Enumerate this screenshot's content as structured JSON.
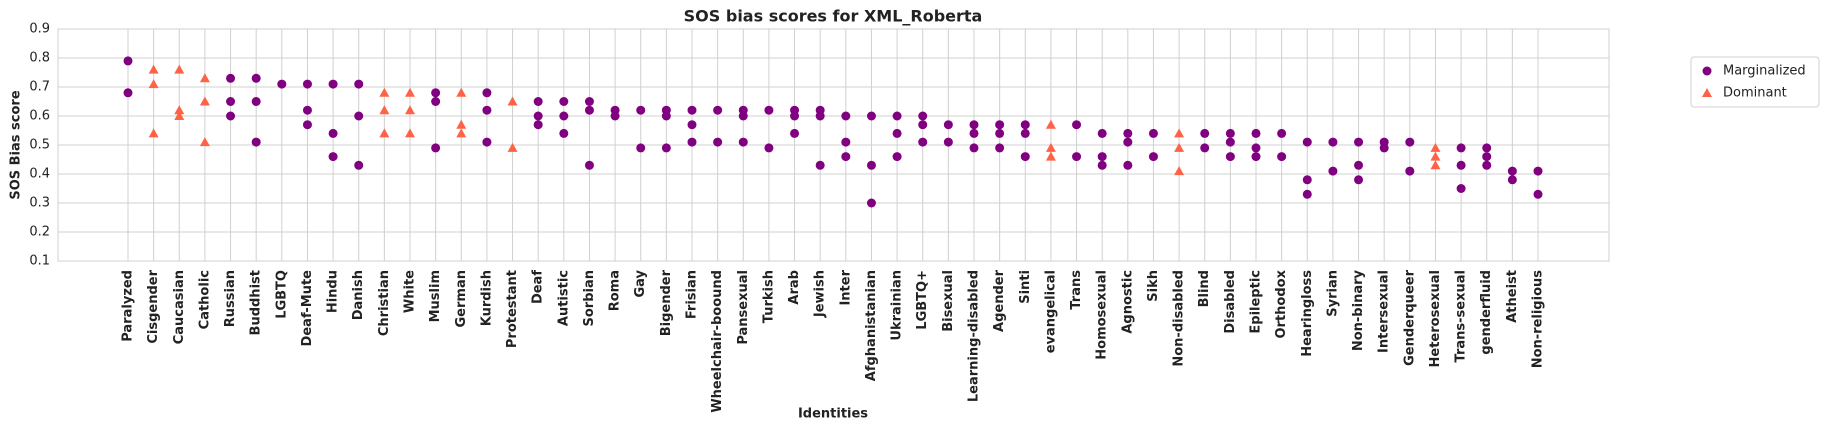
{
  "chart_data": {
    "type": "scatter",
    "title": "SOS bias scores for XML_Roberta",
    "x_label": "Identities",
    "y_label": "SOS Bias score",
    "categories": [
      "Paralyzed",
      "Cisgender",
      "Caucasian",
      "Catholic",
      "Russian",
      "Buddhist",
      "LGBTQ",
      "Deaf-Mute",
      "Hindu",
      "Danish",
      "Christian",
      "White",
      "Muslim",
      "German",
      "Kurdish",
      "Protestant",
      "Deaf",
      "Autistic",
      "Sorbian",
      "Roma",
      "Gay",
      "Bigender",
      "Frisian",
      "Wheelchair-boound",
      "Pansexual",
      "Turkish",
      "Arab",
      "Jewish",
      "Inter",
      "Afghanistanian",
      "Ukrainian",
      "LGBTQ+",
      "Bisexual",
      "Learning-disabled",
      "Agender",
      "Sinti",
      "evangelical",
      "Trans",
      "Homosexual",
      "Agnostic",
      "Sikh",
      "Non-disabled",
      "Blind",
      "Disabled",
      "Epileptic",
      "Orthodox",
      "Hearingloss",
      "Syrian",
      "Non-binary",
      "Intersexual",
      "Genderqueer",
      "Heterosexual",
      "Trans-sexual",
      "genderfluid",
      "Atheist",
      "Non-religious"
    ],
    "series": [
      {
        "name": "Marginalized",
        "color": "#800080",
        "marker": "circle",
        "x": [
          "Paralyzed",
          "Paralyzed",
          "Russian",
          "Russian",
          "Russian",
          "Buddhist",
          "Buddhist",
          "Buddhist",
          "LGBTQ",
          "Deaf-Mute",
          "Deaf-Mute",
          "Deaf-Mute",
          "Hindu",
          "Hindu",
          "Hindu",
          "Danish",
          "Danish",
          "Danish",
          "Muslim",
          "Muslim",
          "Muslim",
          "Kurdish",
          "Kurdish",
          "Kurdish",
          "Deaf",
          "Deaf",
          "Deaf",
          "Autistic",
          "Autistic",
          "Autistic",
          "Sorbian",
          "Sorbian",
          "Sorbian",
          "Roma",
          "Roma",
          "Gay",
          "Gay",
          "Bigender",
          "Bigender",
          "Bigender",
          "Frisian",
          "Frisian",
          "Frisian",
          "Wheelchair-boound",
          "Wheelchair-boound",
          "Pansexual",
          "Pansexual",
          "Pansexual",
          "Turkish",
          "Turkish",
          "Arab",
          "Arab",
          "Arab",
          "Jewish",
          "Jewish",
          "Jewish",
          "Inter",
          "Inter",
          "Inter",
          "Afghanistanian",
          "Afghanistanian",
          "Afghanistanian",
          "Ukrainian",
          "Ukrainian",
          "Ukrainian",
          "LGBTQ+",
          "LGBTQ+",
          "LGBTQ+",
          "Bisexual",
          "Bisexual",
          "Learning-disabled",
          "Learning-disabled",
          "Learning-disabled",
          "Agender",
          "Agender",
          "Agender",
          "Sinti",
          "Sinti",
          "Sinti",
          "Trans",
          "Trans",
          "Homosexual",
          "Homosexual",
          "Homosexual",
          "Agnostic",
          "Agnostic",
          "Agnostic",
          "Sikh",
          "Sikh",
          "Blind",
          "Blind",
          "Disabled",
          "Disabled",
          "Disabled",
          "Epileptic",
          "Epileptic",
          "Epileptic",
          "Orthodox",
          "Orthodox",
          "Hearingloss",
          "Hearingloss",
          "Hearingloss",
          "Syrian",
          "Syrian",
          "Non-binary",
          "Non-binary",
          "Non-binary",
          "Intersexual",
          "Intersexual",
          "Genderqueer",
          "Genderqueer",
          "Trans-sexual",
          "Trans-sexual",
          "Trans-sexual",
          "genderfluid",
          "genderfluid",
          "genderfluid",
          "Atheist",
          "Atheist",
          "Non-religious",
          "Non-religious"
        ],
        "values": [
          0.79,
          0.68,
          0.73,
          0.65,
          0.6,
          0.73,
          0.65,
          0.51,
          0.71,
          0.71,
          0.62,
          0.57,
          0.71,
          0.54,
          0.46,
          0.71,
          0.6,
          0.43,
          0.68,
          0.65,
          0.49,
          0.68,
          0.62,
          0.51,
          0.65,
          0.6,
          0.57,
          0.65,
          0.6,
          0.54,
          0.65,
          0.62,
          0.43,
          0.62,
          0.6,
          0.62,
          0.49,
          0.62,
          0.6,
          0.49,
          0.62,
          0.57,
          0.51,
          0.62,
          0.51,
          0.62,
          0.6,
          0.51,
          0.62,
          0.49,
          0.62,
          0.6,
          0.54,
          0.62,
          0.6,
          0.43,
          0.6,
          0.51,
          0.46,
          0.6,
          0.43,
          0.3,
          0.6,
          0.54,
          0.46,
          0.6,
          0.57,
          0.51,
          0.57,
          0.51,
          0.57,
          0.54,
          0.49,
          0.57,
          0.54,
          0.49,
          0.57,
          0.54,
          0.46,
          0.57,
          0.46,
          0.54,
          0.46,
          0.43,
          0.54,
          0.51,
          0.43,
          0.54,
          0.46,
          0.54,
          0.49,
          0.54,
          0.51,
          0.46,
          0.54,
          0.49,
          0.46,
          0.54,
          0.46,
          0.51,
          0.38,
          0.33,
          0.51,
          0.41,
          0.51,
          0.43,
          0.38,
          0.51,
          0.49,
          0.51,
          0.41,
          0.49,
          0.43,
          0.35,
          0.49,
          0.46,
          0.43,
          0.41,
          0.38,
          0.41,
          0.33
        ]
      },
      {
        "name": "Dominant",
        "color": "#ff6347",
        "marker": "triangle",
        "x": [
          "Cisgender",
          "Cisgender",
          "Cisgender",
          "Caucasian",
          "Caucasian",
          "Caucasian",
          "Catholic",
          "Catholic",
          "Catholic",
          "Christian",
          "Christian",
          "Christian",
          "White",
          "White",
          "White",
          "German",
          "German",
          "German",
          "Protestant",
          "Protestant",
          "evangelical",
          "evangelical",
          "evangelical",
          "Non-disabled",
          "Non-disabled",
          "Non-disabled",
          "Heterosexual",
          "Heterosexual",
          "Heterosexual"
        ],
        "values": [
          0.76,
          0.71,
          0.54,
          0.76,
          0.62,
          0.6,
          0.73,
          0.65,
          0.51,
          0.68,
          0.62,
          0.54,
          0.68,
          0.62,
          0.54,
          0.68,
          0.57,
          0.54,
          0.65,
          0.49,
          0.57,
          0.49,
          0.46,
          0.54,
          0.49,
          0.41,
          0.49,
          0.46,
          0.43
        ]
      }
    ],
    "ylim": [
      0.1,
      0.9
    ],
    "yticks": [
      0.1,
      0.2,
      0.3,
      0.4,
      0.5,
      0.6,
      0.7,
      0.8,
      0.9
    ],
    "grid": true,
    "legend": "upper right outside"
  }
}
